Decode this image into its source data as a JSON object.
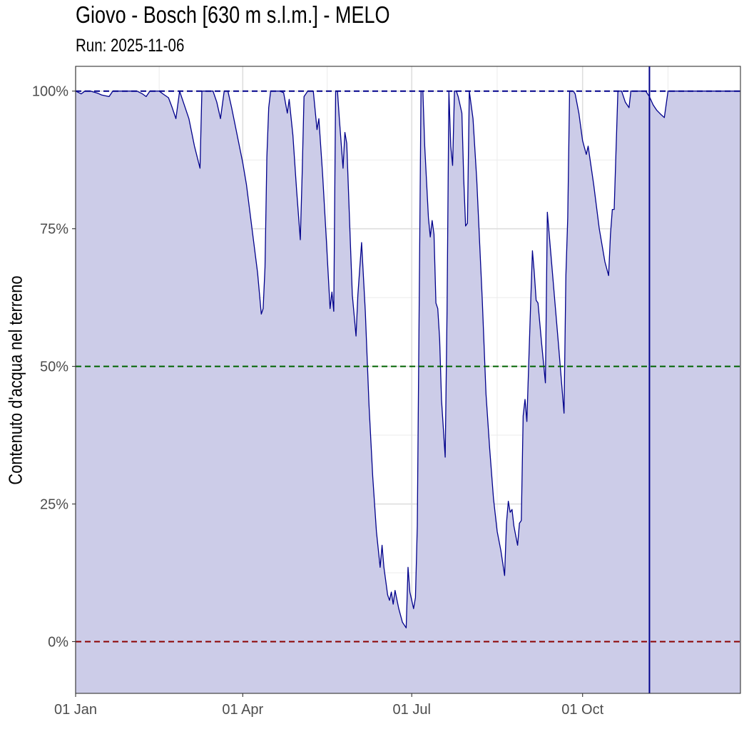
{
  "chart_data": {
    "type": "area",
    "title": "Giovo - Bosch [630 m s.l.m.] - MELO",
    "subtitle": "Run: 2025-11-06",
    "ylabel": "Contenuto d'acqua nel terreno",
    "xlabel": "",
    "x_unit": "day_of_year_2025",
    "xlim": [
      0,
      358
    ],
    "ylim": [
      -9.4,
      104.5
    ],
    "x_ticks": [
      {
        "day": 0,
        "label": "01 Jan"
      },
      {
        "day": 90,
        "label": "01 Apr"
      },
      {
        "day": 181,
        "label": "01 Jul"
      },
      {
        "day": 273,
        "label": "01 Oct"
      }
    ],
    "y_ticks": [
      {
        "value": 0,
        "label": "0%"
      },
      {
        "value": 25,
        "label": "25%"
      },
      {
        "value": 50,
        "label": "50%"
      },
      {
        "value": 75,
        "label": "75%"
      },
      {
        "value": 100,
        "label": "100%"
      }
    ],
    "reference_lines": [
      {
        "value": 100,
        "color": "#00008b",
        "style": "dashed"
      },
      {
        "value": 50,
        "color": "#006400",
        "style": "dashed"
      },
      {
        "value": 0,
        "color": "#8b0000",
        "style": "dashed"
      }
    ],
    "vertical_marker_day": 309,
    "line_color": "#00008b",
    "fill_color": "#cccce8",
    "grid": true,
    "series": [
      {
        "points": [
          [
            0,
            100
          ],
          [
            3,
            99.5
          ],
          [
            5,
            100
          ],
          [
            8,
            100
          ],
          [
            12,
            99.6
          ],
          [
            14,
            99.3
          ],
          [
            18,
            99
          ],
          [
            20,
            100
          ],
          [
            22,
            100
          ],
          [
            25,
            100
          ],
          [
            30,
            100
          ],
          [
            33,
            100
          ],
          [
            36,
            99.5
          ],
          [
            38,
            99
          ],
          [
            40,
            100
          ],
          [
            42,
            100
          ],
          [
            45,
            100
          ],
          [
            47,
            99.5
          ],
          [
            50,
            98.8
          ],
          [
            52,
            97
          ],
          [
            54,
            95
          ],
          [
            56,
            100
          ],
          [
            58,
            98
          ],
          [
            61,
            95
          ],
          [
            64,
            90
          ],
          [
            67,
            86
          ],
          [
            68,
            100
          ],
          [
            70,
            100
          ],
          [
            74,
            100
          ],
          [
            76,
            98
          ],
          [
            78,
            95
          ],
          [
            80,
            100
          ],
          [
            82,
            100
          ],
          [
            84,
            97
          ],
          [
            87,
            92
          ],
          [
            90,
            87
          ],
          [
            92,
            83
          ],
          [
            95,
            75
          ],
          [
            98,
            67
          ],
          [
            100,
            59.5
          ],
          [
            101,
            60.5
          ],
          [
            102,
            68
          ],
          [
            103,
            88
          ],
          [
            104,
            97
          ],
          [
            105,
            100
          ],
          [
            107,
            100
          ],
          [
            110,
            100
          ],
          [
            112,
            99.7
          ],
          [
            114,
            96
          ],
          [
            115,
            98.5
          ],
          [
            117,
            92
          ],
          [
            119,
            82
          ],
          [
            121,
            73
          ],
          [
            122,
            85
          ],
          [
            123,
            99
          ],
          [
            125,
            100
          ],
          [
            128,
            100
          ],
          [
            130,
            93
          ],
          [
            131,
            95
          ],
          [
            133,
            85
          ],
          [
            135,
            73
          ],
          [
            137,
            60.5
          ],
          [
            138,
            63.5
          ],
          [
            139,
            60
          ],
          [
            140,
            100
          ],
          [
            141,
            100
          ],
          [
            142,
            95
          ],
          [
            144,
            86
          ],
          [
            145,
            92.5
          ],
          [
            146,
            90.5
          ],
          [
            148,
            72
          ],
          [
            149,
            63
          ],
          [
            151,
            55.5
          ],
          [
            152,
            63
          ],
          [
            154,
            72.5
          ],
          [
            156,
            60
          ],
          [
            158,
            43
          ],
          [
            160,
            30
          ],
          [
            162,
            20
          ],
          [
            164,
            13.5
          ],
          [
            165,
            17.5
          ],
          [
            166,
            13.5
          ],
          [
            168,
            8.5
          ],
          [
            169,
            7.5
          ],
          [
            170,
            9
          ],
          [
            171,
            6.8
          ],
          [
            172,
            9.3
          ],
          [
            174,
            6
          ],
          [
            176,
            3.5
          ],
          [
            178,
            2.5
          ],
          [
            179,
            13.5
          ],
          [
            180,
            9
          ],
          [
            182,
            6
          ],
          [
            183,
            8
          ],
          [
            184,
            21
          ],
          [
            186,
            100
          ],
          [
            187,
            100
          ],
          [
            188,
            90
          ],
          [
            190,
            77
          ],
          [
            191,
            73.5
          ],
          [
            192,
            76.5
          ],
          [
            193,
            74
          ],
          [
            194,
            61.5
          ],
          [
            195,
            60.5
          ],
          [
            196,
            55
          ],
          [
            197,
            44
          ],
          [
            199,
            33.5
          ],
          [
            200,
            60
          ],
          [
            201,
            100
          ],
          [
            202,
            90
          ],
          [
            203,
            86.5
          ],
          [
            204,
            100
          ],
          [
            205,
            100
          ],
          [
            206,
            99
          ],
          [
            208,
            96
          ],
          [
            209,
            84
          ],
          [
            210,
            75.5
          ],
          [
            211,
            76
          ],
          [
            212,
            100
          ],
          [
            214,
            95
          ],
          [
            216,
            84
          ],
          [
            219,
            62
          ],
          [
            221,
            45
          ],
          [
            223,
            35
          ],
          [
            225,
            26
          ],
          [
            227,
            20
          ],
          [
            229,
            16.5
          ],
          [
            231,
            12
          ],
          [
            232,
            21.5
          ],
          [
            233,
            25.5
          ],
          [
            234,
            23.5
          ],
          [
            235,
            24
          ],
          [
            236,
            21
          ],
          [
            238,
            17.5
          ],
          [
            239,
            21.5
          ],
          [
            240,
            22
          ],
          [
            241,
            41
          ],
          [
            242,
            44
          ],
          [
            243,
            40
          ],
          [
            245,
            61
          ],
          [
            246,
            71
          ],
          [
            247,
            67
          ],
          [
            248,
            62
          ],
          [
            249,
            61.5
          ],
          [
            251,
            54
          ],
          [
            253,
            47
          ],
          [
            254,
            78
          ],
          [
            256,
            70
          ],
          [
            258,
            62
          ],
          [
            260,
            54
          ],
          [
            263,
            41.5
          ],
          [
            264,
            66.5
          ],
          [
            265,
            77
          ],
          [
            266,
            100
          ],
          [
            268,
            100
          ],
          [
            269,
            99.5
          ],
          [
            271,
            96
          ],
          [
            273,
            91
          ],
          [
            275,
            88.5
          ],
          [
            276,
            90
          ],
          [
            279,
            83
          ],
          [
            282,
            75
          ],
          [
            285,
            69
          ],
          [
            287,
            66.5
          ],
          [
            288,
            74
          ],
          [
            289,
            78.5
          ],
          [
            290,
            78.5
          ],
          [
            292,
            100
          ],
          [
            294,
            100
          ],
          [
            296,
            98
          ],
          [
            298,
            97
          ],
          [
            299,
            100
          ],
          [
            301,
            100
          ],
          [
            305,
            100
          ],
          [
            307,
            100
          ],
          [
            308,
            99.5
          ],
          [
            309,
            99
          ],
          [
            311,
            97.5
          ],
          [
            313,
            96.5
          ],
          [
            315,
            95.8
          ],
          [
            317,
            95.2
          ],
          [
            319,
            100
          ],
          [
            322,
            100
          ],
          [
            325,
            100
          ],
          [
            328,
            100
          ],
          [
            331,
            100
          ],
          [
            334,
            100
          ],
          [
            337,
            100
          ],
          [
            340,
            100
          ],
          [
            343,
            100
          ],
          [
            346,
            100
          ],
          [
            349,
            100
          ],
          [
            352,
            100
          ],
          [
            355,
            100
          ],
          [
            358,
            100
          ]
        ]
      }
    ]
  }
}
